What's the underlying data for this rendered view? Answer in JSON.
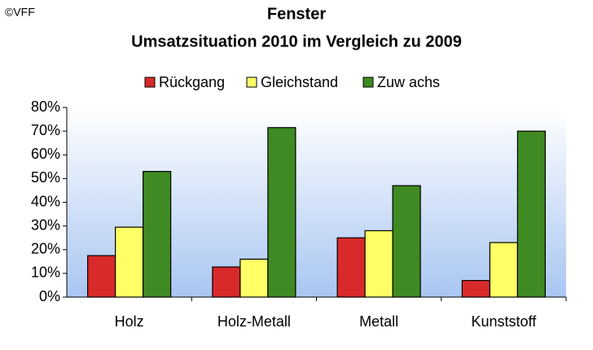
{
  "chart_data": {
    "type": "bar",
    "copyright": "©VFF",
    "title": "Fenster",
    "subtitle": "Umsatzsituation 2010 im Vergleich zu 2009",
    "categories": [
      "Holz",
      "Holz-Metall",
      "Metall",
      "Kunststoff"
    ],
    "series": [
      {
        "name": "Rückgang",
        "color": "#d82a2a",
        "values": [
          17.5,
          12.7,
          25,
          7
        ]
      },
      {
        "name": "Gleichstand",
        "color": "#ffff66",
        "values": [
          29.5,
          16,
          28,
          23
        ]
      },
      {
        "name": "Zuw achs",
        "color": "#3f8a22",
        "values": [
          53,
          71.5,
          47,
          70
        ]
      }
    ],
    "ylim": [
      0,
      80
    ],
    "yticks": [
      {
        "value": 0,
        "label": "0%"
      },
      {
        "value": 10,
        "label": "10%"
      },
      {
        "value": 20,
        "label": "20%"
      },
      {
        "value": 30,
        "label": "30%"
      },
      {
        "value": 40,
        "label": "40%"
      },
      {
        "value": 50,
        "label": "50%"
      },
      {
        "value": 60,
        "label": "60%"
      },
      {
        "value": 70,
        "label": "70%"
      },
      {
        "value": 80,
        "label": "80%"
      }
    ]
  }
}
